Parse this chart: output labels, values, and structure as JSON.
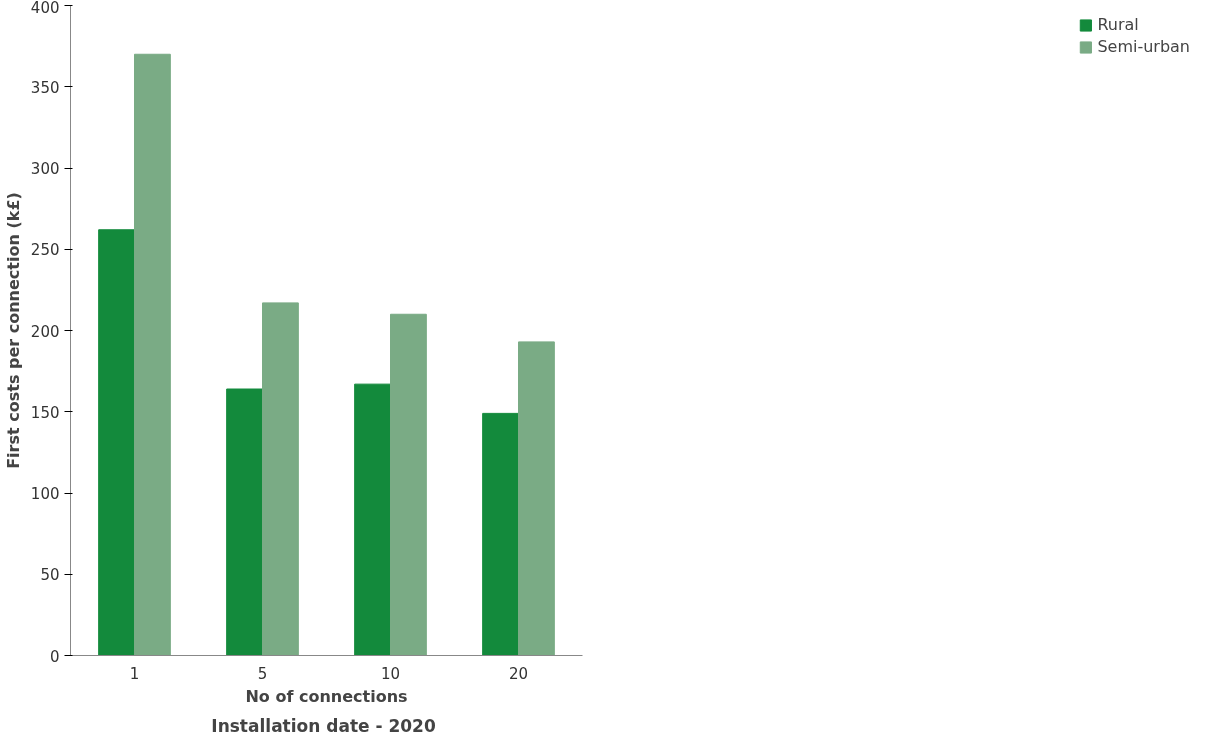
{
  "chart_data": {
    "type": "bar",
    "categories": [
      "1",
      "5",
      "10",
      "20"
    ],
    "xlabel": "No of connections",
    "ylabel": "First costs per connection (k£)",
    "annotations": [
      "Installation date  - 2020"
    ],
    "series": [
      {
        "name": "Rural",
        "color": "#138a3c",
        "values": [
          262,
          164,
          167,
          149
        ]
      },
      {
        "name": "Semi-urban",
        "color": "#7aab85",
        "values": [
          370,
          217,
          210,
          193
        ]
      }
    ],
    "ylim": [
      0,
      400
    ],
    "yticks": [
      0,
      50,
      100,
      150,
      200,
      250,
      300,
      350,
      400
    ],
    "grid": false,
    "legend": "right"
  }
}
